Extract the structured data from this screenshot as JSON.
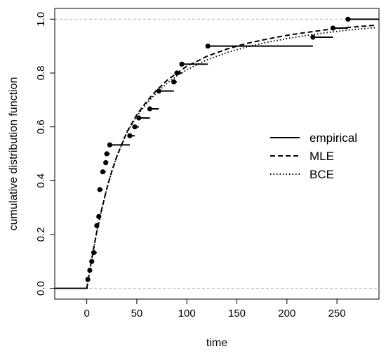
{
  "chart_data": {
    "type": "line",
    "title": "",
    "xlabel": "time",
    "ylabel": "cumulative distribution function",
    "xlim": [
      -32,
      292
    ],
    "ylim": [
      -0.04,
      1.04
    ],
    "x_ticks": [
      0,
      50,
      100,
      150,
      200,
      250
    ],
    "y_ticks": [
      0.0,
      0.2,
      0.4,
      0.6,
      0.8,
      1.0
    ],
    "x_tick_labels": [
      "0",
      "50",
      "100",
      "150",
      "200",
      "250"
    ],
    "y_tick_labels": [
      "0.0",
      "0.2",
      "0.4",
      "0.6",
      "0.8",
      "1.0"
    ],
    "reference_lines_y": [
      0.0,
      1.0
    ],
    "legend_position": "right-middle",
    "legend": [
      "empirical",
      "MLE",
      "BCE"
    ],
    "series": [
      {
        "name": "empirical",
        "style": "step",
        "points": [
          [
            1,
            0.033
          ],
          [
            3,
            0.067
          ],
          [
            5,
            0.1
          ],
          [
            7,
            0.133
          ],
          [
            10,
            0.233
          ],
          [
            12,
            0.267
          ],
          [
            13,
            0.367
          ],
          [
            16,
            0.433
          ],
          [
            19,
            0.467
          ],
          [
            20,
            0.5
          ],
          [
            23,
            0.533
          ],
          [
            43,
            0.567
          ],
          [
            48,
            0.6
          ],
          [
            52,
            0.633
          ],
          [
            63,
            0.667
          ],
          [
            72,
            0.733
          ],
          [
            87,
            0.767
          ],
          [
            90,
            0.8
          ],
          [
            95,
            0.833
          ],
          [
            121,
            0.9
          ],
          [
            226,
            0.933
          ],
          [
            246,
            0.967
          ],
          [
            261,
            1.0
          ]
        ],
        "before": [
          -32,
          0.0
        ],
        "after_x": 292
      },
      {
        "name": "MLE",
        "style": "dashed",
        "points": [
          [
            0,
            0.0
          ],
          [
            5,
            0.11
          ],
          [
            10,
            0.21
          ],
          [
            15,
            0.295
          ],
          [
            20,
            0.37
          ],
          [
            25,
            0.435
          ],
          [
            30,
            0.49
          ],
          [
            40,
            0.58
          ],
          [
            50,
            0.645
          ],
          [
            60,
            0.695
          ],
          [
            70,
            0.737
          ],
          [
            80,
            0.772
          ],
          [
            90,
            0.8
          ],
          [
            100,
            0.825
          ],
          [
            120,
            0.862
          ],
          [
            140,
            0.889
          ],
          [
            160,
            0.91
          ],
          [
            180,
            0.926
          ],
          [
            200,
            0.94
          ],
          [
            220,
            0.951
          ],
          [
            240,
            0.961
          ],
          [
            260,
            0.969
          ],
          [
            280,
            0.975
          ],
          [
            290,
            0.978
          ]
        ]
      },
      {
        "name": "BCE",
        "style": "dotted",
        "points": [
          [
            0,
            0.0
          ],
          [
            5,
            0.11
          ],
          [
            10,
            0.21
          ],
          [
            15,
            0.295
          ],
          [
            20,
            0.37
          ],
          [
            25,
            0.435
          ],
          [
            30,
            0.49
          ],
          [
            40,
            0.578
          ],
          [
            50,
            0.64
          ],
          [
            60,
            0.688
          ],
          [
            70,
            0.728
          ],
          [
            80,
            0.761
          ],
          [
            90,
            0.789
          ],
          [
            100,
            0.812
          ],
          [
            120,
            0.849
          ],
          [
            140,
            0.876
          ],
          [
            160,
            0.897
          ],
          [
            180,
            0.914
          ],
          [
            200,
            0.928
          ],
          [
            220,
            0.94
          ],
          [
            240,
            0.95
          ],
          [
            260,
            0.959
          ],
          [
            280,
            0.966
          ],
          [
            290,
            0.969
          ]
        ]
      }
    ]
  }
}
